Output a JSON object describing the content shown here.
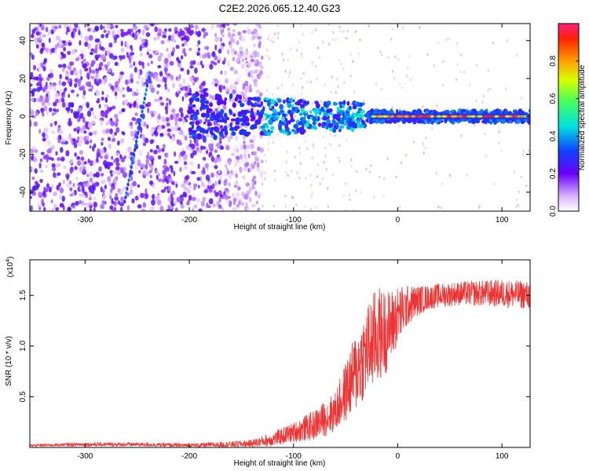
{
  "title": "C2E2.2026.065.12.40.G23",
  "chart_data": [
    {
      "type": "heatmap",
      "xlabel": "Height of straight line (km)",
      "ylabel": "Frequency (Hz)",
      "xlim": [
        -353,
        127
      ],
      "ylim": [
        -50,
        49
      ],
      "x_ticks": [
        -300,
        -200,
        -100,
        0,
        100
      ],
      "y_ticks": [
        -40,
        -20,
        0,
        20,
        40
      ],
      "colorbar": {
        "label": "Normalized spectral amplitude",
        "range": [
          0,
          1
        ],
        "ticks": [
          0.0,
          0.2,
          0.4,
          0.6,
          0.8
        ],
        "tick_labels": [
          "0.0",
          "0.2",
          "0.4",
          "0.6",
          "0.8"
        ]
      },
      "features": {
        "noise_region_x": [
          -353,
          -130
        ],
        "signal_band_center_hz": 0,
        "signal_onset_x": -130,
        "strong_carrier_x": [
          -25,
          127
        ],
        "diagonal_streak": {
          "x": [
            -262,
            -238
          ],
          "y": [
            -45,
            23
          ]
        }
      }
    },
    {
      "type": "line",
      "xlabel": "Height of straight line (km)",
      "ylabel": "SNR (10 * v/v)",
      "y_multiplier": "(x10⁴)",
      "xlim": [
        -353,
        127
      ],
      "ylim": [
        0,
        1.85
      ],
      "x_ticks": [
        -300,
        -200,
        -100,
        0,
        100
      ],
      "y_ticks": [
        0.5,
        1.0,
        1.5
      ],
      "y_tick_labels": [
        "0.5",
        "1.0",
        "1.5"
      ],
      "series": [
        {
          "color": "#ee3333",
          "x": [
            -353,
            -300,
            -250,
            -200,
            -160,
            -140,
            -120,
            -100,
            -80,
            -60,
            -50,
            -40,
            -30,
            -20,
            -10,
            0,
            10,
            20,
            30,
            40,
            60,
            80,
            100,
            127
          ],
          "y": [
            0.02,
            0.03,
            0.03,
            0.02,
            0.03,
            0.04,
            0.08,
            0.15,
            0.22,
            0.35,
            0.55,
            0.75,
            0.95,
            1.1,
            1.15,
            1.3,
            1.4,
            1.45,
            1.48,
            1.5,
            1.52,
            1.52,
            1.52,
            1.5
          ],
          "noise_amp": [
            0.01,
            0.02,
            0.02,
            0.02,
            0.03,
            0.04,
            0.07,
            0.1,
            0.15,
            0.2,
            0.3,
            0.4,
            0.45,
            0.5,
            0.4,
            0.3,
            0.2,
            0.15,
            0.12,
            0.12,
            0.12,
            0.13,
            0.14,
            0.14
          ]
        }
      ]
    }
  ]
}
